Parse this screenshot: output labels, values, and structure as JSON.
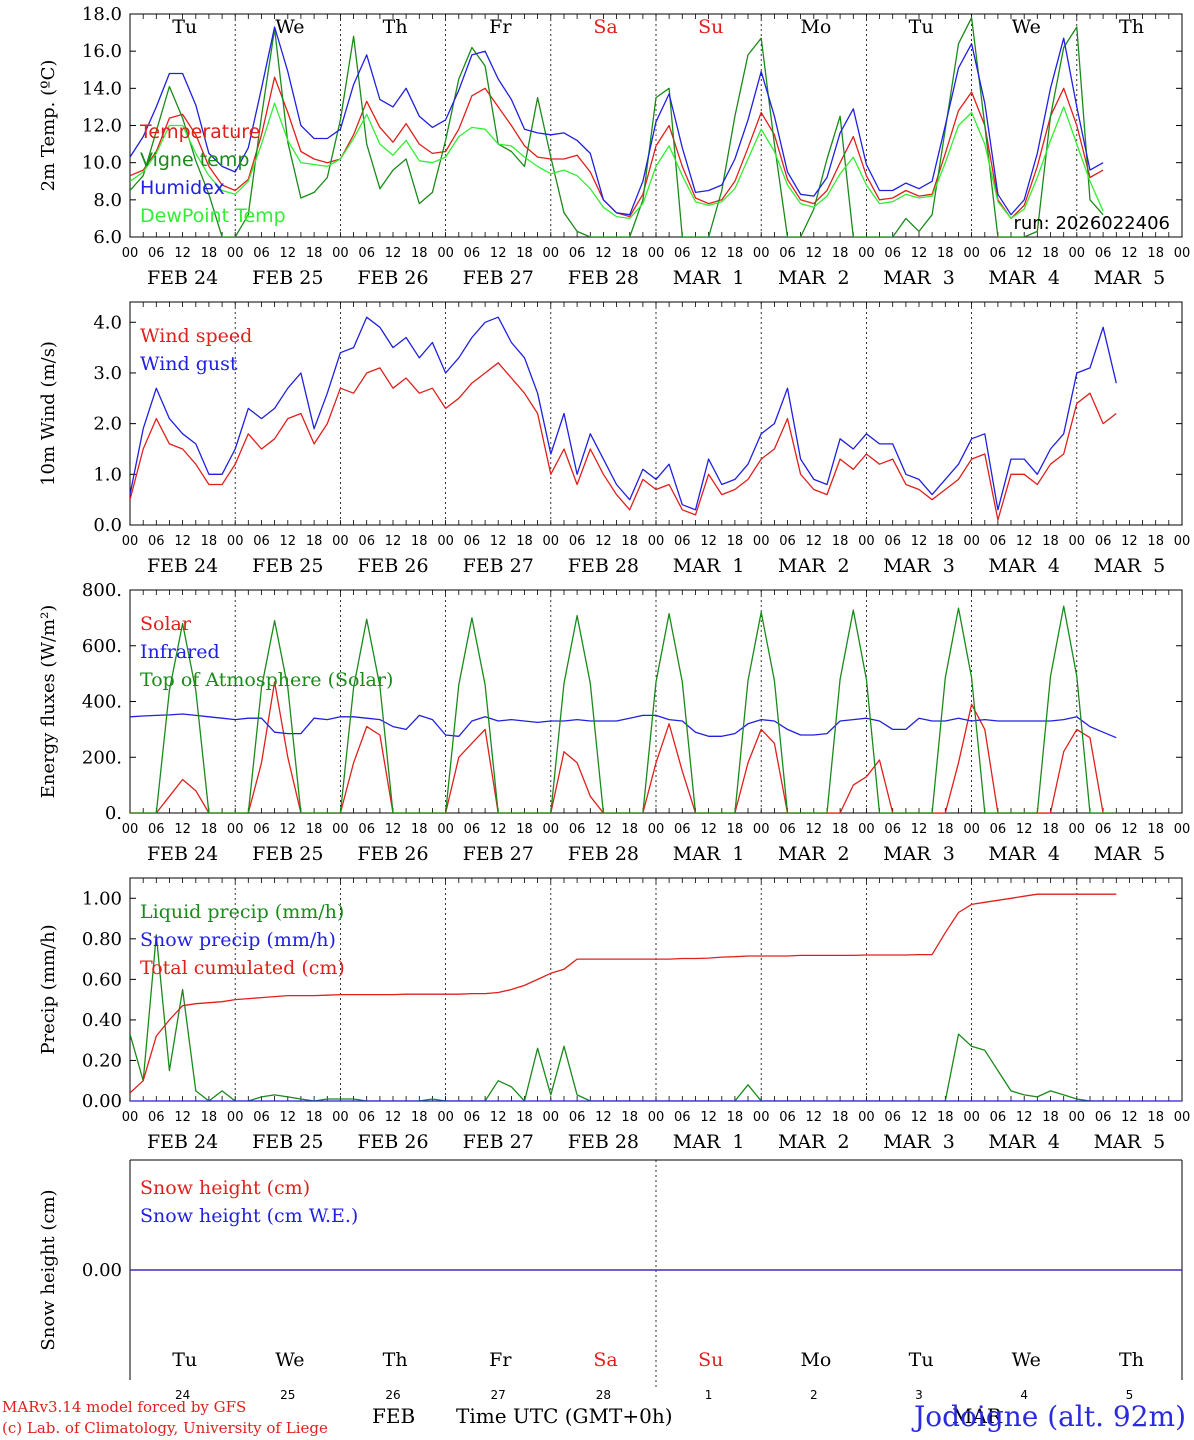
{
  "colors": {
    "red": "#e0201c",
    "green": "#1a8a1a",
    "blue": "#2020e0",
    "lightgreen": "#33ee33",
    "black": "#000000"
  },
  "days": [
    {
      "date_label": "FEB 24",
      "weekday": "Tu",
      "day_num": "24",
      "weekend": false
    },
    {
      "date_label": "FEB 25",
      "weekday": "We",
      "day_num": "25",
      "weekend": false
    },
    {
      "date_label": "FEB 26",
      "weekday": "Th",
      "day_num": "26",
      "weekend": false
    },
    {
      "date_label": "FEB 27",
      "weekday": "Fr",
      "day_num": "27",
      "weekend": false
    },
    {
      "date_label": "FEB 28",
      "weekday": "Sa",
      "day_num": "28",
      "weekend": true
    },
    {
      "date_label": "MAR  1",
      "weekday": "Su",
      "day_num": "1",
      "weekend": true
    },
    {
      "date_label": "MAR  2",
      "weekday": "Mo",
      "day_num": "2",
      "weekend": false
    },
    {
      "date_label": "MAR  3",
      "weekday": "Tu",
      "day_num": "3",
      "weekend": false
    },
    {
      "date_label": "MAR  4",
      "weekday": "We",
      "day_num": "4",
      "weekend": false
    },
    {
      "date_label": "MAR  5",
      "weekday": "Th",
      "day_num": "5",
      "weekend": false
    }
  ],
  "hour_ticks": [
    "00",
    "06",
    "12",
    "18"
  ],
  "footer": {
    "credit_line1": "MARv3.14 model forced by GFS",
    "credit_line2": "(c) Lab. of Climatology, University of Liege",
    "month_feb": "FEB",
    "time_axis_label": "Time UTC (GMT+0h)",
    "month_mar": "MAR",
    "station": "Jodoigne (alt. 92m)"
  },
  "chart_data": [
    {
      "id": "temperature",
      "type": "line",
      "ylabel": "2m Temp. (ºC)",
      "ylim": [
        6.0,
        18.0
      ],
      "yticks": [
        "6.0",
        "8.0",
        "10.0",
        "12.0",
        "14.0",
        "16.0",
        "18.0"
      ],
      "annotation": "run: 2026022406",
      "x_step_hours": 3,
      "series": [
        {
          "name": "Temperature",
          "color": "red",
          "values": [
            9.3,
            9.6,
            10.6,
            12.4,
            12.6,
            11.5,
            9.8,
            8.8,
            8.5,
            9.1,
            11.5,
            14.6,
            12.7,
            10.6,
            10.2,
            10.0,
            10.2,
            11.5,
            13.3,
            11.9,
            11.1,
            12.1,
            11.0,
            10.5,
            10.6,
            11.8,
            13.6,
            14.0,
            13.0,
            12.0,
            10.9,
            10.3,
            10.2,
            10.2,
            10.4,
            9.5,
            8.0,
            7.3,
            7.1,
            8.3,
            10.9,
            12.0,
            9.8,
            8.1,
            7.8,
            8.0,
            9.0,
            10.8,
            12.7,
            11.5,
            9.1,
            8.0,
            7.8,
            8.5,
            10.0,
            11.4,
            9.3,
            8.0,
            8.1,
            8.5,
            8.2,
            8.3,
            10.5,
            12.8,
            13.8,
            12.0,
            8.0,
            7.0,
            7.7,
            9.8,
            12.5,
            14.0,
            12.0,
            9.2,
            9.6
          ]
        },
        {
          "name": "Vigne temp",
          "color": "green",
          "values": [
            8.5,
            9.3,
            11.7,
            14.1,
            12.4,
            10.1,
            8.3,
            6.0,
            6.0,
            7.2,
            12.5,
            17.2,
            11.1,
            8.1,
            8.4,
            9.2,
            12.3,
            16.8,
            11.0,
            8.6,
            9.6,
            10.2,
            7.8,
            8.4,
            11.2,
            14.5,
            16.2,
            15.2,
            11.0,
            10.6,
            9.8,
            13.5,
            10.3,
            7.3,
            6.3,
            6.0,
            6.0,
            6.0,
            6.0,
            8.0,
            13.5,
            14.0,
            6.0,
            6.0,
            6.0,
            8.5,
            12.5,
            15.8,
            16.7,
            11.0,
            6.0,
            6.0,
            7.5,
            10.2,
            12.5,
            6.0,
            6.0,
            6.0,
            6.0,
            7.0,
            6.3,
            7.2,
            11.8,
            16.4,
            17.8,
            12.0,
            6.0,
            6.0,
            6.0,
            6.3,
            12.5,
            16.2,
            17.3,
            8.0,
            7.2
          ]
        },
        {
          "name": "Humidex",
          "color": "blue",
          "values": [
            10.3,
            11.4,
            13.0,
            14.8,
            14.8,
            13.1,
            10.5,
            9.8,
            9.5,
            10.8,
            14.0,
            17.3,
            14.9,
            12.0,
            11.3,
            11.3,
            11.8,
            14.2,
            15.8,
            13.4,
            13.0,
            14.0,
            12.5,
            11.9,
            12.3,
            13.9,
            15.8,
            16.0,
            14.5,
            13.4,
            11.8,
            11.6,
            11.5,
            11.6,
            11.2,
            10.5,
            8.0,
            7.3,
            7.2,
            9.0,
            12.2,
            13.7,
            10.8,
            8.4,
            8.5,
            8.8,
            10.2,
            12.3,
            14.9,
            12.5,
            9.5,
            8.3,
            8.2,
            9.2,
            11.6,
            12.9,
            9.9,
            8.5,
            8.5,
            8.9,
            8.6,
            9.0,
            12.0,
            15.1,
            16.4,
            13.2,
            8.3,
            7.2,
            8.0,
            10.5,
            14.0,
            16.7,
            13.0,
            9.6,
            10.0
          ]
        },
        {
          "name": "DewPoint Temp",
          "color": "lightgreen",
          "values": [
            9.0,
            9.5,
            10.5,
            12.0,
            12.0,
            10.5,
            9.3,
            8.5,
            8.3,
            9.0,
            11.0,
            13.2,
            11.2,
            10.0,
            9.9,
            9.8,
            10.2,
            11.3,
            12.6,
            11.0,
            10.4,
            11.2,
            10.1,
            10.0,
            10.3,
            11.4,
            11.9,
            11.8,
            11.0,
            10.9,
            10.3,
            9.8,
            9.4,
            9.6,
            9.3,
            8.6,
            7.6,
            7.1,
            7.0,
            7.8,
            9.8,
            10.9,
            9.3,
            7.9,
            7.7,
            7.9,
            8.6,
            10.2,
            11.8,
            10.6,
            8.8,
            7.8,
            7.6,
            8.2,
            9.4,
            10.3,
            8.8,
            7.8,
            7.9,
            8.3,
            8.1,
            8.2,
            10.0,
            12.0,
            12.7,
            11.0,
            7.9,
            7.0,
            7.5,
            9.2,
            11.2,
            13.0,
            11.0,
            9.0,
            7.4
          ]
        }
      ]
    },
    {
      "id": "wind",
      "type": "line",
      "ylabel": "10m Wind (m/s)",
      "ylim": [
        0.0,
        4.4
      ],
      "yticks": [
        "0.0",
        "1.0",
        "2.0",
        "3.0",
        "4.0"
      ],
      "x_step_hours": 3,
      "series": [
        {
          "name": "Wind speed",
          "color": "red",
          "values": [
            0.5,
            1.5,
            2.1,
            1.6,
            1.5,
            1.2,
            0.8,
            0.8,
            1.2,
            1.8,
            1.5,
            1.7,
            2.1,
            2.2,
            1.6,
            2.0,
            2.7,
            2.6,
            3.0,
            3.1,
            2.7,
            2.9,
            2.6,
            2.7,
            2.3,
            2.5,
            2.8,
            3.0,
            3.2,
            2.9,
            2.6,
            2.2,
            1.0,
            1.5,
            0.8,
            1.5,
            1.0,
            0.6,
            0.3,
            0.9,
            0.7,
            0.8,
            0.3,
            0.2,
            1.0,
            0.6,
            0.7,
            0.9,
            1.3,
            1.5,
            2.1,
            1.0,
            0.7,
            0.6,
            1.3,
            1.1,
            1.4,
            1.2,
            1.3,
            0.8,
            0.7,
            0.5,
            0.7,
            0.9,
            1.3,
            1.4,
            0.1,
            1.0,
            1.0,
            0.8,
            1.2,
            1.4,
            2.4,
            2.6,
            2.0,
            2.2
          ]
        },
        {
          "name": "Wind gust",
          "color": "blue",
          "values": [
            0.6,
            1.9,
            2.7,
            2.1,
            1.8,
            1.6,
            1.0,
            1.0,
            1.5,
            2.3,
            2.1,
            2.3,
            2.7,
            3.0,
            1.9,
            2.6,
            3.4,
            3.5,
            4.1,
            3.9,
            3.5,
            3.7,
            3.3,
            3.6,
            3.0,
            3.3,
            3.7,
            4.0,
            4.1,
            3.6,
            3.3,
            2.6,
            1.4,
            2.2,
            1.0,
            1.8,
            1.3,
            0.8,
            0.5,
            1.1,
            0.9,
            1.2,
            0.4,
            0.3,
            1.3,
            0.8,
            0.9,
            1.2,
            1.8,
            2.0,
            2.7,
            1.3,
            0.9,
            0.8,
            1.7,
            1.5,
            1.8,
            1.6,
            1.6,
            1.0,
            0.9,
            0.6,
            0.9,
            1.2,
            1.7,
            1.8,
            0.3,
            1.3,
            1.3,
            1.0,
            1.5,
            1.8,
            3.0,
            3.1,
            3.9,
            2.8
          ]
        }
      ]
    },
    {
      "id": "energy",
      "type": "line",
      "ylabel": "Energy fluxes (W/m²)",
      "ylim": [
        0,
        800
      ],
      "yticks": [
        "0.",
        "200.",
        "400.",
        "600.",
        "800."
      ],
      "x_step_hours": 3,
      "series": [
        {
          "name": "Solar",
          "color": "red",
          "values": [
            0,
            0,
            0,
            60,
            120,
            80,
            0,
            0,
            0,
            0,
            180,
            470,
            200,
            0,
            0,
            0,
            0,
            180,
            310,
            280,
            0,
            0,
            0,
            0,
            0,
            200,
            250,
            300,
            0,
            0,
            0,
            0,
            0,
            220,
            180,
            60,
            0,
            0,
            0,
            0,
            180,
            320,
            150,
            0,
            0,
            0,
            0,
            180,
            300,
            250,
            0,
            0,
            0,
            0,
            0,
            100,
            130,
            190,
            0,
            0,
            0,
            0,
            0,
            180,
            390,
            300,
            0,
            0,
            0,
            0,
            0,
            220,
            300,
            270,
            0,
            0
          ]
        },
        {
          "name": "Infrared",
          "color": "blue",
          "values": [
            345,
            348,
            350,
            352,
            355,
            350,
            345,
            340,
            335,
            340,
            340,
            290,
            285,
            285,
            340,
            335,
            345,
            345,
            340,
            335,
            310,
            300,
            350,
            335,
            280,
            275,
            330,
            345,
            330,
            335,
            330,
            325,
            330,
            330,
            335,
            330,
            330,
            330,
            340,
            350,
            350,
            335,
            330,
            290,
            275,
            275,
            285,
            320,
            335,
            330,
            300,
            280,
            280,
            285,
            330,
            335,
            340,
            330,
            300,
            300,
            340,
            330,
            330,
            340,
            330,
            335,
            330,
            330,
            330,
            330,
            330,
            335,
            345,
            310,
            290,
            270
          ]
        },
        {
          "name": "Top of Atmosphere (Solar)",
          "color": "green",
          "values": [
            0,
            0,
            0,
            440,
            680,
            440,
            0,
            0,
            0,
            0,
            450,
            690,
            450,
            0,
            0,
            0,
            0,
            450,
            695,
            455,
            0,
            0,
            0,
            0,
            0,
            460,
            700,
            460,
            0,
            0,
            0,
            0,
            0,
            465,
            708,
            465,
            0,
            0,
            0,
            0,
            470,
            715,
            470,
            0,
            0,
            0,
            0,
            475,
            720,
            475,
            0,
            0,
            0,
            0,
            480,
            728,
            480,
            0,
            0,
            0,
            0,
            0,
            485,
            735,
            485,
            0,
            0,
            0,
            0,
            0,
            490,
            742,
            490,
            0,
            0,
            0
          ]
        }
      ]
    },
    {
      "id": "precip",
      "type": "line",
      "ylabel": "Precip (mm/h)",
      "ylim": [
        0.0,
        1.1
      ],
      "yticks": [
        "0.00",
        "0.20",
        "0.40",
        "0.60",
        "0.80",
        "1.00"
      ],
      "x_step_hours": 3,
      "series": [
        {
          "name": "Liquid precip (mm/h)",
          "color": "green",
          "values": [
            0.33,
            0.1,
            0.82,
            0.15,
            0.55,
            0.05,
            0.0,
            0.05,
            0.0,
            0.0,
            0.02,
            0.03,
            0.02,
            0.01,
            0.0,
            0.01,
            0.01,
            0.01,
            0.0,
            0.0,
            0.0,
            0.0,
            0.0,
            0.01,
            0.0,
            0.0,
            0.0,
            0.0,
            0.1,
            0.07,
            0.0,
            0.26,
            0.03,
            0.27,
            0.03,
            0.0,
            0.0,
            0.0,
            0.0,
            0.0,
            0.0,
            0.0,
            0.0,
            0.0,
            0.0,
            0.0,
            0.0,
            0.08,
            0.0,
            0.0,
            0.0,
            0.0,
            0.0,
            0.0,
            0.0,
            0.0,
            0.0,
            0.0,
            0.0,
            0.0,
            0.0,
            0.0,
            0.0,
            0.33,
            0.27,
            0.25,
            0.15,
            0.05,
            0.03,
            0.02,
            0.05,
            0.03,
            0.01,
            0.0,
            0.0,
            0.0
          ]
        },
        {
          "name": "Snow precip (mm/h)",
          "color": "blue",
          "values": [
            0,
            0
          ]
        },
        {
          "name": "Total cumulated (cm)",
          "color": "red",
          "values": [
            0.04,
            0.1,
            0.32,
            0.4,
            0.47,
            0.48,
            0.485,
            0.49,
            0.5,
            0.505,
            0.51,
            0.515,
            0.52,
            0.52,
            0.52,
            0.522,
            0.525,
            0.525,
            0.525,
            0.525,
            0.525,
            0.527,
            0.527,
            0.527,
            0.527,
            0.527,
            0.53,
            0.53,
            0.535,
            0.55,
            0.57,
            0.6,
            0.63,
            0.65,
            0.7,
            0.7,
            0.7,
            0.7,
            0.7,
            0.7,
            0.7,
            0.7,
            0.703,
            0.703,
            0.705,
            0.71,
            0.712,
            0.715,
            0.715,
            0.715,
            0.715,
            0.718,
            0.718,
            0.718,
            0.718,
            0.718,
            0.72,
            0.72,
            0.72,
            0.72,
            0.722,
            0.722,
            0.83,
            0.93,
            0.97,
            0.98,
            0.99,
            1.0,
            1.01,
            1.02,
            1.02,
            1.02,
            1.02,
            1.02,
            1.02,
            1.02
          ]
        }
      ]
    },
    {
      "id": "snow",
      "type": "line",
      "ylabel": "Snow height (cm)",
      "ylim": [
        -1.0,
        1.0
      ],
      "yticks": [
        "0.00"
      ],
      "x_step_hours": 3,
      "series": [
        {
          "name": "Snow height (cm)",
          "color": "red",
          "values": [
            0,
            0
          ]
        },
        {
          "name": "Snow height (cm W.E.)",
          "color": "blue",
          "values": [
            0,
            0
          ]
        }
      ]
    }
  ]
}
